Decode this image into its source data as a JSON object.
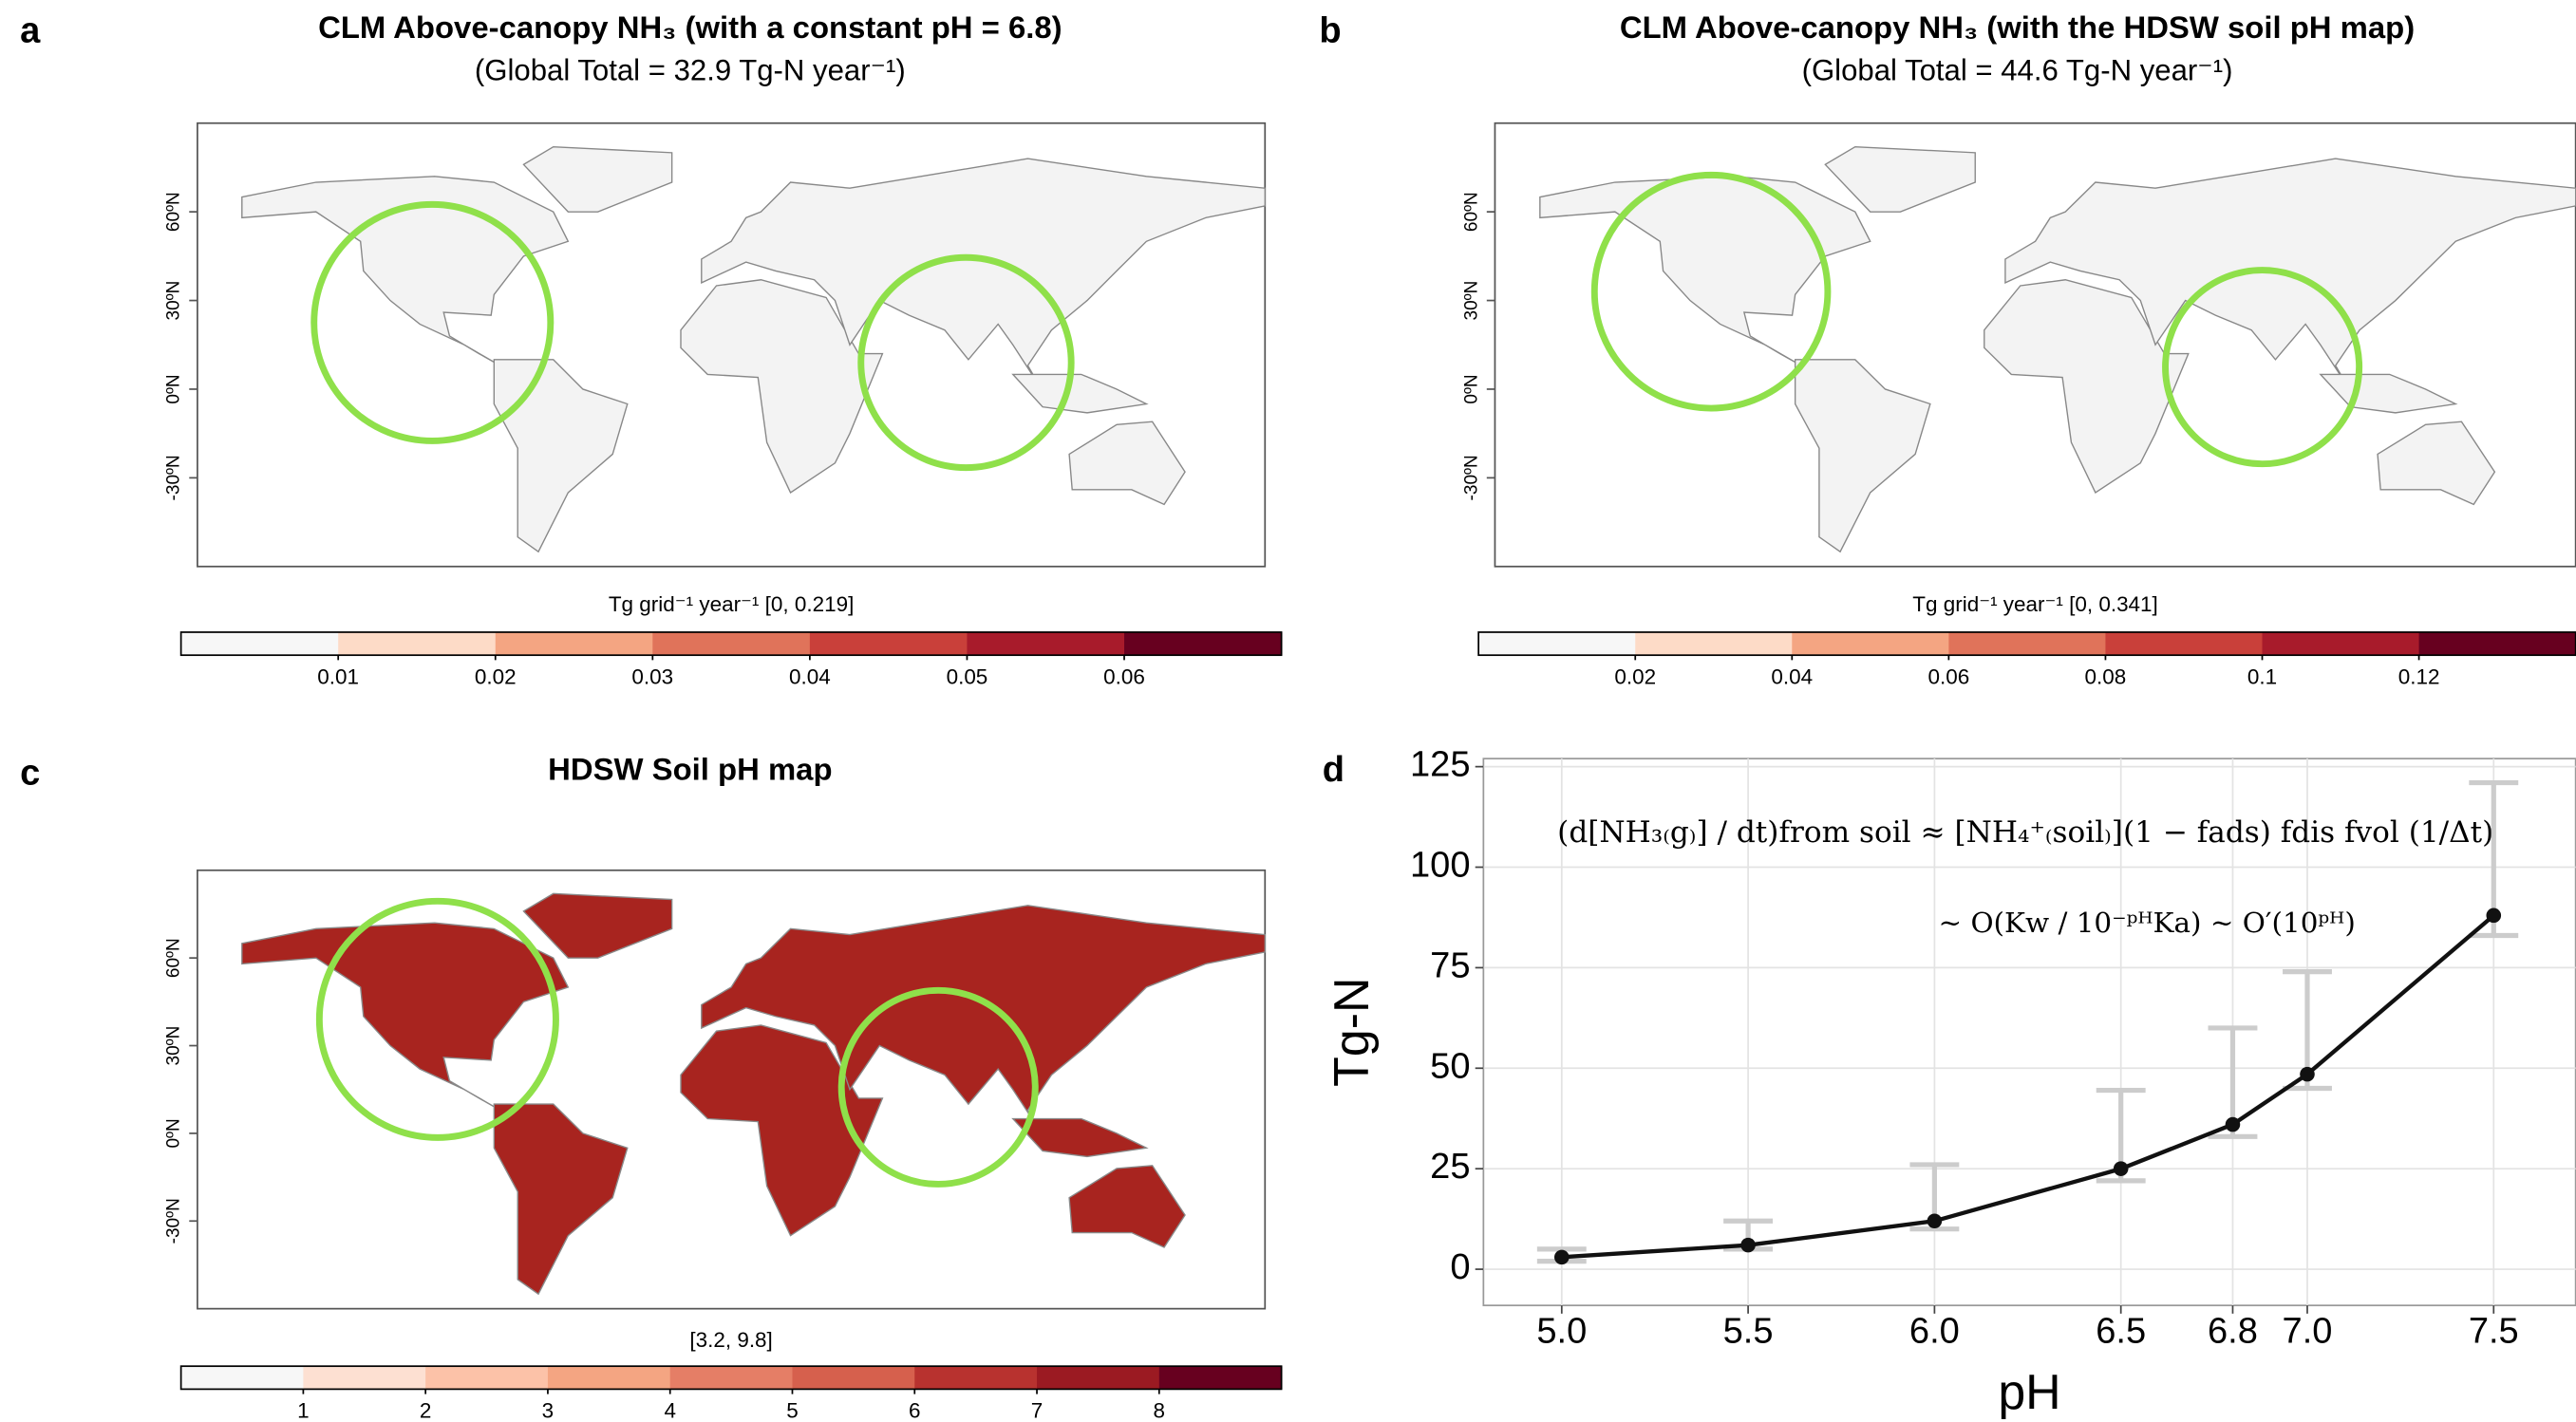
{
  "chart_data": [
    {
      "type": "map",
      "panel": "a",
      "title": "CLM Above-canopy NH₃ (with a constant pH = 6.8)",
      "subtitle": "(Global Total = 32.9 Tg-N year⁻¹)",
      "fill": "#f3f3f3",
      "lonlim": [
        -180,
        180
      ],
      "latlim": [
        -60,
        90
      ],
      "yticks": [
        {
          "value": 60,
          "label": "60ºN"
        },
        {
          "value": 30,
          "label": "30ºN"
        },
        {
          "value": 0,
          "label": "0ºN"
        },
        {
          "value": -30,
          "label": "-30ºN"
        }
      ],
      "colorbar_label": "Tg grid⁻¹ year⁻¹ [0, 0.219]",
      "colorlim": [
        0,
        0.07
      ],
      "colorticks": [
        0.01,
        0.02,
        0.03,
        0.04,
        0.05,
        0.06
      ],
      "colors": [
        "#f7f7f7",
        "#fddbc7",
        "#f4a582",
        "#e0735a",
        "#c9403a",
        "#a81b2b",
        "#67001f"
      ]
    },
    {
      "type": "map",
      "panel": "b",
      "title": "CLM Above-canopy NH₃ (with the HDSW soil pH map)",
      "subtitle": "(Global Total = 44.6 Tg-N year⁻¹)",
      "fill": "#f3f3f3",
      "lonlim": [
        -180,
        180
      ],
      "latlim": [
        -60,
        90
      ],
      "yticks": [
        {
          "value": 60,
          "label": "60ºN"
        },
        {
          "value": 30,
          "label": "30ºN"
        },
        {
          "value": 0,
          "label": "0ºN"
        },
        {
          "value": -30,
          "label": "-30ºN"
        }
      ],
      "colorbar_label": "Tg grid⁻¹ year⁻¹ [0, 0.341]",
      "colorlim": [
        0,
        0.14
      ],
      "colorticks": [
        0.02,
        0.04,
        0.06,
        0.08,
        0.1,
        0.12
      ],
      "colors": [
        "#f7f7f7",
        "#fddbc7",
        "#f4a582",
        "#e0735a",
        "#c9403a",
        "#a81b2b",
        "#67001f"
      ]
    },
    {
      "type": "map",
      "panel": "c",
      "title": "HDSW Soil pH map",
      "fill": "#a8241f",
      "lonlim": [
        -180,
        180
      ],
      "latlim": [
        -60,
        90
      ],
      "yticks": [
        {
          "value": 60,
          "label": "60ºN"
        },
        {
          "value": 30,
          "label": "30ºN"
        },
        {
          "value": 0,
          "label": "0ºN"
        },
        {
          "value": -30,
          "label": "-30ºN"
        }
      ],
      "colorbar_label": "[3.2, 9.8]",
      "colorlim": [
        0,
        9
      ],
      "colorticks": [
        1,
        2,
        3,
        4,
        5,
        6,
        7,
        8
      ],
      "colors": [
        "#f7f7f7",
        "#fde0d2",
        "#fcc2a8",
        "#f4a582",
        "#e57e66",
        "#d6604d",
        "#b8322f",
        "#9b1a22",
        "#67001f"
      ]
    },
    {
      "type": "line",
      "panel": "d",
      "x_label": "pH",
      "y_label": "Tg-N",
      "equation_1": "(d[NH₃₍g₎] / dt)from soil ≈ [NH₄⁺₍soil₎](1 − fads) fdis fvol (1/Δt)",
      "equation_2": "~ O(Kw / 10⁻ᵖᴴKa) ~ O′(10ᵖᴴ)",
      "x": [
        5.0,
        5.5,
        6.0,
        6.5,
        6.8,
        7.0,
        7.5
      ],
      "values": [
        3,
        6,
        12,
        25,
        36,
        48.5,
        88
      ],
      "error_plus": [
        2,
        6,
        14,
        19.5,
        24,
        25.5,
        33
      ],
      "error_minus": [
        1,
        1,
        2,
        3,
        3,
        3.5,
        5
      ],
      "color": "#111111",
      "error_color": "#cccccc",
      "xlim": [
        4.79,
        7.72
      ],
      "ylim": [
        -9,
        127
      ],
      "xticks": [
        {
          "value": 5,
          "label": "5.0"
        },
        5.5,
        {
          "value": 6,
          "label": "6.0"
        },
        6.5,
        6.8,
        {
          "value": 7,
          "label": "7.0"
        },
        7.5
      ],
      "yticks": [
        0,
        25,
        50,
        75,
        100,
        125
      ],
      "grid": true
    }
  ]
}
